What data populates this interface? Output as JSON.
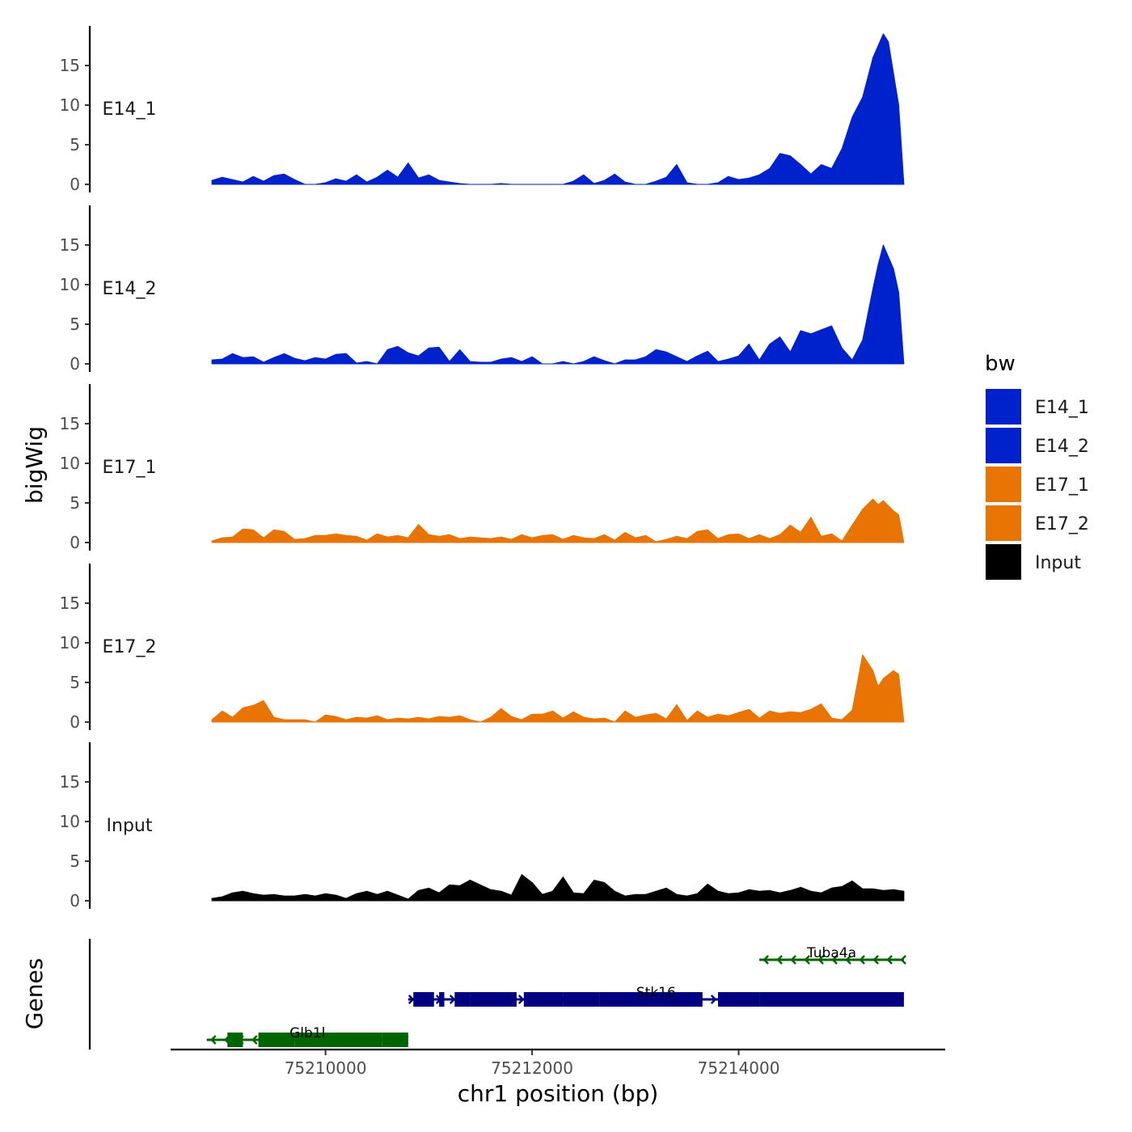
{
  "chart_data": {
    "type": "area",
    "ylabel": "bigWig",
    "xlabel": "chr1 position (bp)",
    "xlim": [
      75208500,
      75216000
    ],
    "ylim": [
      0,
      20
    ],
    "y_ticks": [
      0,
      5,
      10,
      15
    ],
    "y_tick_labels": [
      "0",
      "5",
      "10",
      "15"
    ],
    "x_ticks": [
      75210000,
      75212000,
      75214000
    ],
    "x_tick_labels": [
      "75210000",
      "75212000",
      "75214000"
    ],
    "colors": {
      "E14": "#0022CC",
      "E17": "#E87404",
      "Input": "#000000"
    },
    "tracks": [
      {
        "name": "E14_1",
        "color": "#0022CC",
        "x": [
          75208900,
          75209000,
          75209100,
          75209200,
          75209300,
          75209400,
          75209500,
          75209600,
          75209700,
          75209800,
          75209900,
          75210000,
          75210100,
          75210200,
          75210300,
          75210400,
          75210500,
          75210600,
          75210700,
          75210800,
          75210900,
          75211000,
          75211100,
          75211200,
          75211300,
          75211400,
          75211500,
          75211600,
          75211700,
          75211800,
          75211900,
          75212000,
          75212100,
          75212200,
          75212300,
          75212400,
          75212500,
          75212600,
          75212700,
          75212800,
          75212900,
          75213000,
          75213100,
          75213200,
          75213300,
          75213400,
          75213500,
          75213600,
          75213700,
          75213800,
          75213900,
          75214000,
          75214100,
          75214200,
          75214300,
          75214400,
          75214500,
          75214600,
          75214700,
          75214800,
          75214900,
          75215000,
          75215100,
          75215200,
          75215300,
          75215400,
          75215450,
          75215500,
          75215550,
          75215600
        ],
        "values": [
          0.5,
          0.9,
          0.6,
          0.3,
          1.0,
          0.4,
          1.1,
          1.3,
          0.6,
          0.0,
          0.0,
          0.2,
          0.7,
          0.4,
          1.2,
          0.3,
          0.9,
          1.8,
          0.9,
          2.7,
          0.8,
          1.2,
          0.5,
          0.3,
          0.1,
          0.0,
          0.0,
          0.0,
          0.1,
          0.0,
          0.0,
          0.0,
          0.0,
          0.0,
          0.0,
          0.4,
          1.2,
          0.1,
          0.5,
          1.3,
          0.3,
          0.0,
          0.0,
          0.4,
          0.9,
          2.5,
          0.2,
          0.0,
          0.0,
          0.2,
          1.0,
          0.6,
          0.8,
          1.2,
          2.0,
          3.9,
          3.6,
          2.5,
          1.3,
          2.5,
          2.0,
          4.5,
          8.5,
          11.0,
          16.0,
          19.0,
          18.0,
          14.0,
          10.0,
          0.0
        ]
      },
      {
        "name": "E14_2",
        "color": "#0022CC",
        "x": [
          75208900,
          75209000,
          75209100,
          75209200,
          75209300,
          75209400,
          75209500,
          75209600,
          75209700,
          75209800,
          75209900,
          75210000,
          75210100,
          75210200,
          75210300,
          75210400,
          75210500,
          75210600,
          75210700,
          75210800,
          75210900,
          75211000,
          75211100,
          75211200,
          75211300,
          75211400,
          75211500,
          75211600,
          75211700,
          75211800,
          75211900,
          75212000,
          75212100,
          75212200,
          75212300,
          75212400,
          75212500,
          75212600,
          75212700,
          75212800,
          75212900,
          75213000,
          75213100,
          75213200,
          75213300,
          75213400,
          75213500,
          75213600,
          75213700,
          75213800,
          75213900,
          75214000,
          75214100,
          75214200,
          75214300,
          75214400,
          75214500,
          75214600,
          75214700,
          75214800,
          75214900,
          75215000,
          75215100,
          75215200,
          75215300,
          75215350,
          75215400,
          75215500,
          75215550,
          75215600
        ],
        "values": [
          0.5,
          0.6,
          1.3,
          0.8,
          0.9,
          0.2,
          0.8,
          1.3,
          0.7,
          0.4,
          0.8,
          0.6,
          1.2,
          1.3,
          0.1,
          0.3,
          0.0,
          1.8,
          2.2,
          1.4,
          1.0,
          2.0,
          2.1,
          0.3,
          1.8,
          0.3,
          0.2,
          0.2,
          0.6,
          0.8,
          0.3,
          0.9,
          0.0,
          0.0,
          0.3,
          0.0,
          0.3,
          0.9,
          0.4,
          0.0,
          0.5,
          0.5,
          0.9,
          1.8,
          1.5,
          0.9,
          0.3,
          1.0,
          1.6,
          0.3,
          0.6,
          1.0,
          2.5,
          0.5,
          2.5,
          3.4,
          1.5,
          4.2,
          3.8,
          4.3,
          4.8,
          2.0,
          0.5,
          3.0,
          9.5,
          12.5,
          15.0,
          12.0,
          9.0,
          0.0
        ]
      },
      {
        "name": "E17_1",
        "color": "#E87404",
        "x": [
          75208900,
          75209000,
          75209100,
          75209200,
          75209300,
          75209400,
          75209500,
          75209600,
          75209700,
          75209800,
          75209900,
          75210000,
          75210100,
          75210200,
          75210300,
          75210400,
          75210500,
          75210600,
          75210700,
          75210800,
          75210900,
          75211000,
          75211100,
          75211200,
          75211300,
          75211400,
          75211500,
          75211600,
          75211700,
          75211800,
          75211900,
          75212000,
          75212100,
          75212200,
          75212300,
          75212400,
          75212500,
          75212600,
          75212700,
          75212800,
          75212900,
          75213000,
          75213100,
          75213200,
          75213300,
          75213400,
          75213500,
          75213600,
          75213700,
          75213800,
          75213900,
          75214000,
          75214100,
          75214200,
          75214300,
          75214400,
          75214500,
          75214600,
          75214700,
          75214800,
          75214900,
          75215000,
          75215100,
          75215200,
          75215300,
          75215350,
          75215400,
          75215500,
          75215550,
          75215600
        ],
        "values": [
          0.2,
          0.6,
          0.7,
          1.7,
          1.6,
          0.6,
          1.6,
          1.4,
          0.4,
          0.5,
          0.9,
          0.9,
          1.1,
          0.9,
          0.8,
          0.3,
          1.1,
          0.7,
          0.9,
          0.6,
          2.3,
          1.0,
          0.8,
          1.0,
          0.5,
          0.7,
          0.6,
          0.5,
          0.7,
          0.4,
          1.0,
          0.6,
          0.9,
          1.0,
          0.4,
          0.9,
          0.6,
          0.5,
          1.0,
          0.3,
          1.3,
          0.6,
          0.9,
          0.1,
          0.4,
          0.8,
          0.5,
          1.4,
          1.6,
          0.5,
          1.0,
          1.1,
          0.5,
          1.0,
          0.5,
          1.0,
          2.2,
          1.3,
          3.2,
          0.8,
          1.1,
          0.2,
          2.2,
          4.2,
          5.5,
          4.8,
          5.3,
          4.0,
          3.5,
          0.0
        ]
      },
      {
        "name": "E17_2",
        "color": "#E87404",
        "x": [
          75208900,
          75209000,
          75209100,
          75209200,
          75209300,
          75209400,
          75209500,
          75209600,
          75209700,
          75209800,
          75209900,
          75210000,
          75210100,
          75210200,
          75210300,
          75210400,
          75210500,
          75210600,
          75210700,
          75210800,
          75210900,
          75211000,
          75211100,
          75211200,
          75211300,
          75211400,
          75211500,
          75211600,
          75211700,
          75211800,
          75211900,
          75212000,
          75212100,
          75212200,
          75212300,
          75212400,
          75212500,
          75212600,
          75212700,
          75212800,
          75212900,
          75213000,
          75213100,
          75213200,
          75213300,
          75213400,
          75213500,
          75213600,
          75213700,
          75213800,
          75213900,
          75214000,
          75214100,
          75214200,
          75214300,
          75214400,
          75214500,
          75214600,
          75214700,
          75214800,
          75214900,
          75215000,
          75215100,
          75215200,
          75215300,
          75215350,
          75215400,
          75215500,
          75215550,
          75215600
        ],
        "values": [
          0.3,
          1.4,
          0.6,
          1.8,
          2.1,
          2.7,
          0.6,
          0.3,
          0.3,
          0.3,
          0.0,
          0.9,
          0.7,
          0.3,
          0.6,
          0.5,
          0.8,
          0.3,
          0.5,
          0.4,
          0.6,
          0.4,
          0.7,
          0.6,
          0.8,
          0.3,
          0.0,
          0.6,
          1.7,
          0.7,
          0.3,
          1.0,
          1.0,
          1.4,
          0.5,
          1.3,
          0.6,
          0.4,
          0.5,
          0.0,
          1.4,
          0.6,
          0.9,
          1.1,
          0.4,
          2.2,
          0.2,
          1.4,
          0.6,
          1.0,
          0.8,
          1.2,
          1.6,
          0.5,
          1.4,
          1.1,
          1.3,
          1.2,
          1.6,
          2.3,
          0.5,
          0.3,
          1.5,
          8.5,
          6.5,
          4.5,
          5.5,
          6.5,
          6.0,
          0.0
        ]
      },
      {
        "name": "Input",
        "color": "#000000",
        "x": [
          75208900,
          75209000,
          75209100,
          75209200,
          75209300,
          75209400,
          75209500,
          75209600,
          75209700,
          75209800,
          75209900,
          75210000,
          75210100,
          75210200,
          75210300,
          75210400,
          75210500,
          75210600,
          75210700,
          75210800,
          75210900,
          75211000,
          75211100,
          75211200,
          75211300,
          75211400,
          75211500,
          75211600,
          75211700,
          75211800,
          75211900,
          75212000,
          75212100,
          75212200,
          75212300,
          75212400,
          75212500,
          75212600,
          75212700,
          75212800,
          75212900,
          75213000,
          75213100,
          75213200,
          75213300,
          75213400,
          75213500,
          75213600,
          75213700,
          75213800,
          75213900,
          75214000,
          75214100,
          75214200,
          75214300,
          75214400,
          75214500,
          75214600,
          75214700,
          75214800,
          75214900,
          75215000,
          75215100,
          75215200,
          75215300,
          75215400,
          75215500,
          75215600
        ],
        "values": [
          0.3,
          0.5,
          1.0,
          1.2,
          0.9,
          0.7,
          0.8,
          0.6,
          0.6,
          0.8,
          0.6,
          0.9,
          0.7,
          0.3,
          0.9,
          1.2,
          0.8,
          1.2,
          0.7,
          0.2,
          1.3,
          1.6,
          1.0,
          2.0,
          1.9,
          2.6,
          2.0,
          1.4,
          1.2,
          0.7,
          3.3,
          2.3,
          0.8,
          1.2,
          3.0,
          1.0,
          0.9,
          2.6,
          2.3,
          1.2,
          0.6,
          0.8,
          0.8,
          1.2,
          1.6,
          0.8,
          0.6,
          0.9,
          2.1,
          1.2,
          0.9,
          1.0,
          1.4,
          1.2,
          1.3,
          1.0,
          1.3,
          1.7,
          1.2,
          1.0,
          1.6,
          1.8,
          2.5,
          1.5,
          1.5,
          1.3,
          1.4,
          1.2
        ]
      }
    ],
    "genes": {
      "label": "Genes",
      "items": [
        {
          "name": "Tuba4a",
          "start": 75214200,
          "end": 75215600,
          "strand": "-",
          "color": "#006400",
          "row": 0,
          "exons": []
        },
        {
          "name": "Stk16",
          "start": 75210800,
          "end": 75215600,
          "strand": "+",
          "color": "#000080",
          "row": 1,
          "exons": [
            [
              75210850,
              75211050
            ],
            [
              75211100,
              75211150
            ],
            [
              75211250,
              75211400
            ],
            [
              75211400,
              75211850
            ],
            [
              75211920,
              75212300
            ],
            [
              75212300,
              75212650
            ],
            [
              75212650,
              75213650
            ],
            [
              75213800,
              75214200
            ],
            [
              75214200,
              75215600
            ]
          ]
        },
        {
          "name": "Glb1l",
          "start": 75208850,
          "end": 75210800,
          "strand": "-",
          "color": "#006400",
          "row": 2,
          "exons": [
            [
              75209050,
              75209200
            ],
            [
              75209350,
              75209700
            ],
            [
              75209700,
              75210550
            ],
            [
              75210550,
              75210800
            ]
          ]
        }
      ]
    },
    "legend": {
      "title": "bw",
      "entries": [
        {
          "label": "E14_1",
          "color": "#0022CC"
        },
        {
          "label": "E14_2",
          "color": "#0022CC"
        },
        {
          "label": "E17_1",
          "color": "#E87404"
        },
        {
          "label": "E17_2",
          "color": "#E87404"
        },
        {
          "label": "Input",
          "color": "#000000"
        }
      ]
    }
  }
}
